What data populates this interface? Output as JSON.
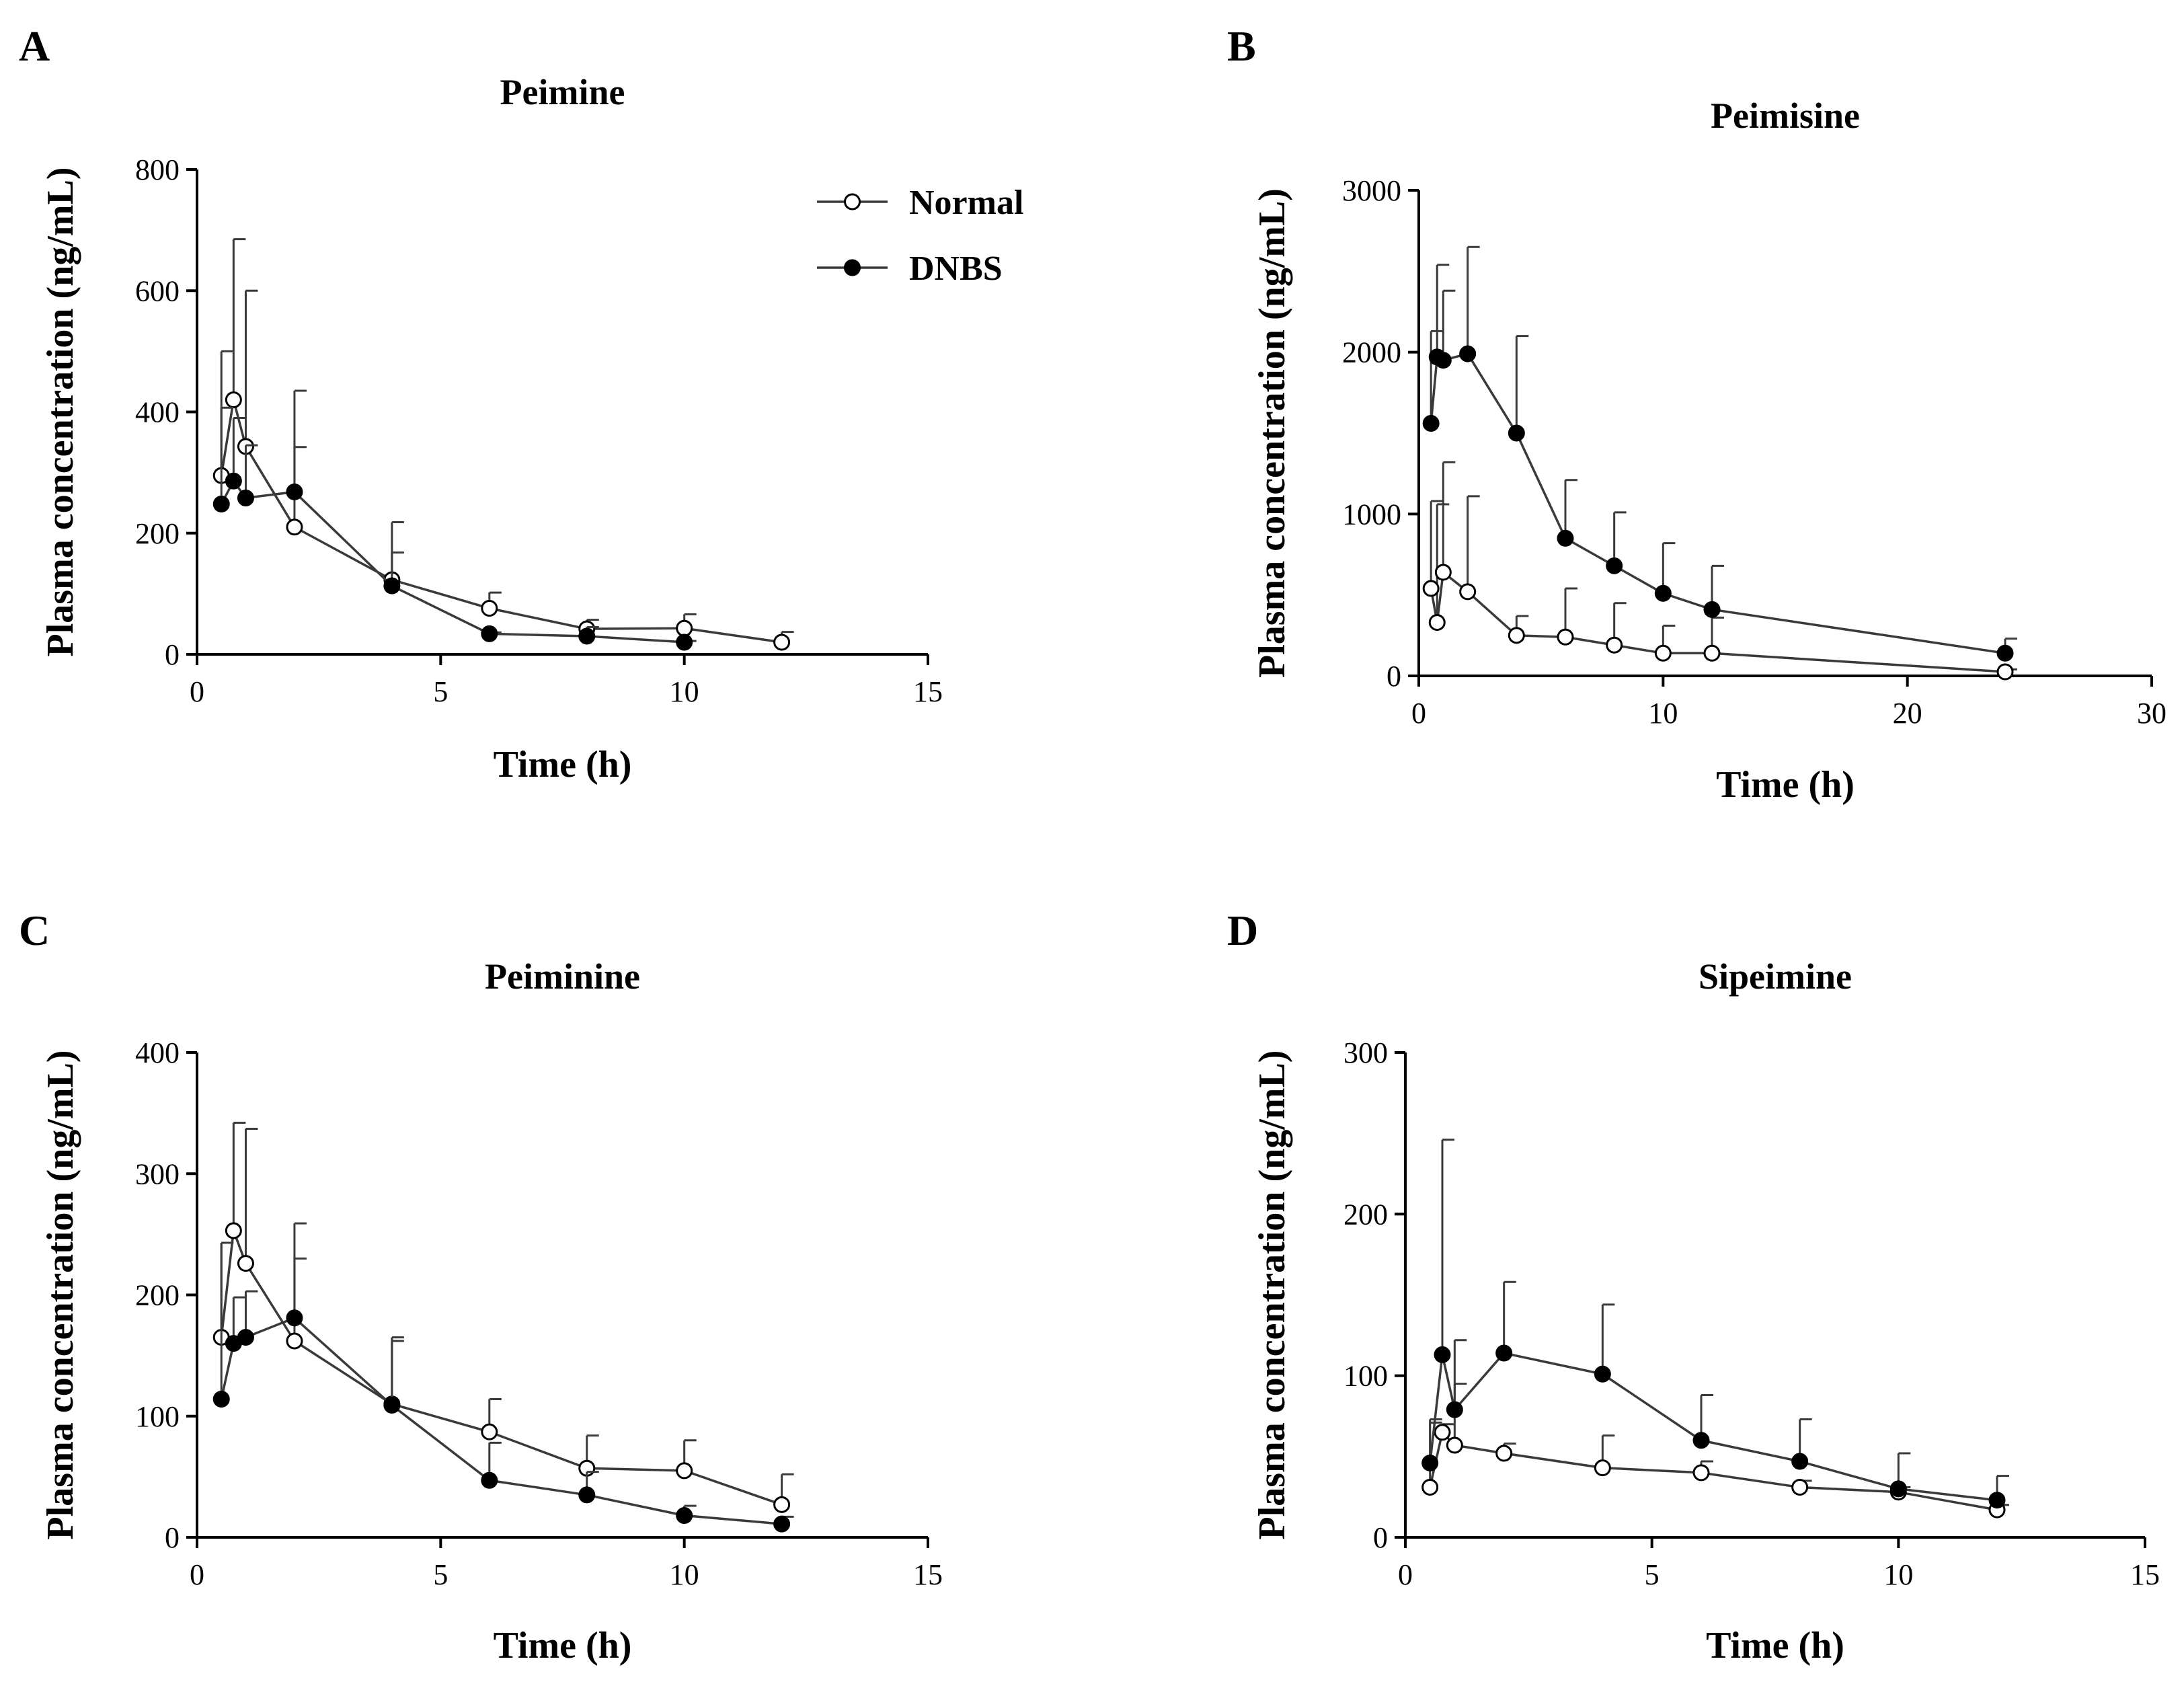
{
  "figure": {
    "legend": [
      {
        "name": "Normal",
        "marker": "open-circle"
      },
      {
        "name": "DNBS",
        "marker": "filled-circle"
      }
    ]
  },
  "colors": {
    "line": "#3a3a3a",
    "marker_edge": "#000000",
    "open_fill": "#ffffff",
    "filled_fill": "#000000"
  },
  "chart_data": [
    {
      "panel": "A",
      "type": "line",
      "title": "Peimine",
      "xlabel": "Time (h)",
      "ylabel": "Plasma concentration (ng/mL)",
      "xlim": [
        0,
        15
      ],
      "ylim": [
        0,
        800
      ],
      "xticks": [
        0,
        5,
        10,
        15
      ],
      "yticks": [
        0,
        200,
        400,
        600,
        800
      ],
      "legend_position": "top-right",
      "series": [
        {
          "name": "Normal",
          "marker": "open-circle",
          "x": [
            0.5,
            0.75,
            1,
            2,
            4,
            6,
            8,
            10,
            12
          ],
          "y": [
            295,
            420,
            343,
            210,
            123,
            76,
            42,
            43,
            20
          ],
          "error_upper": [
            500,
            685,
            600,
            342,
            218,
            102,
            57,
            66,
            37
          ]
        },
        {
          "name": "DNBS",
          "marker": "filled-circle",
          "x": [
            0.5,
            0.75,
            1,
            2,
            4,
            6,
            8,
            10
          ],
          "y": [
            248,
            286,
            258,
            268,
            113,
            34,
            30,
            20
          ],
          "error_upper": [
            407,
            390,
            345,
            435,
            168,
            36,
            45,
            22
          ]
        }
      ]
    },
    {
      "panel": "B",
      "type": "line",
      "title": "Peimisine",
      "xlabel": "Time (h)",
      "ylabel": "Plasma concentration (ng/mL)",
      "xlim": [
        0,
        30
      ],
      "ylim": [
        0,
        3000
      ],
      "xticks": [
        0,
        10,
        20,
        30
      ],
      "yticks": [
        0,
        1000,
        2000,
        3000
      ],
      "series": [
        {
          "name": "Normal",
          "marker": "open-circle",
          "x": [
            0.5,
            0.75,
            1,
            2,
            4,
            6,
            8,
            10,
            12,
            24
          ],
          "y": [
            540,
            330,
            640,
            520,
            250,
            240,
            190,
            140,
            140,
            25
          ],
          "error_upper": [
            1080,
            1060,
            1320,
            1110,
            370,
            540,
            450,
            310,
            360,
            40
          ]
        },
        {
          "name": "DNBS",
          "marker": "filled-circle",
          "x": [
            0.5,
            0.75,
            1,
            2,
            4,
            6,
            8,
            10,
            12,
            24
          ],
          "y": [
            1560,
            1970,
            1950,
            1990,
            1500,
            850,
            680,
            510,
            410,
            140
          ],
          "error_upper": [
            2130,
            2540,
            2380,
            2650,
            2100,
            1210,
            1010,
            820,
            680,
            230
          ]
        }
      ]
    },
    {
      "panel": "C",
      "type": "line",
      "title": "Peiminine",
      "xlabel": "Time (h)",
      "ylabel": "Plasma concentration (ng/mL)",
      "xlim": [
        0,
        15
      ],
      "ylim": [
        0,
        400
      ],
      "xticks": [
        0,
        5,
        10,
        15
      ],
      "yticks": [
        0,
        100,
        200,
        300,
        400
      ],
      "series": [
        {
          "name": "Normal",
          "marker": "open-circle",
          "x": [
            0.5,
            0.75,
            1,
            2,
            4,
            6,
            8,
            10,
            12
          ],
          "y": [
            165,
            253,
            226,
            162,
            110,
            87,
            57,
            55,
            27
          ],
          "error_upper": [
            243,
            342,
            337,
            230,
            165,
            114,
            84,
            80,
            52
          ]
        },
        {
          "name": "DNBS",
          "marker": "filled-circle",
          "x": [
            0.5,
            0.75,
            1,
            2,
            4,
            6,
            8,
            10,
            12
          ],
          "y": [
            114,
            160,
            165,
            181,
            109,
            47,
            35,
            18,
            11
          ],
          "error_upper": [
            243,
            198,
            203,
            259,
            162,
            78,
            54,
            26,
            17
          ]
        }
      ]
    },
    {
      "panel": "D",
      "type": "line",
      "title": "Sipeimine",
      "xlabel": "Time (h)",
      "ylabel": "Plasma concentration (ng/mL)",
      "xlim": [
        0,
        15
      ],
      "ylim": [
        0,
        300
      ],
      "xticks": [
        0,
        5,
        10,
        15
      ],
      "yticks": [
        0,
        100,
        200,
        300
      ],
      "series": [
        {
          "name": "Normal",
          "marker": "open-circle",
          "x": [
            0.5,
            0.75,
            1,
            2,
            4,
            6,
            8,
            10,
            12
          ],
          "y": [
            31,
            65,
            57,
            52,
            43,
            40,
            31,
            28,
            17
          ],
          "error_upper": [
            71,
            70,
            95,
            58,
            63,
            47,
            35,
            31,
            20
          ]
        },
        {
          "name": "DNBS",
          "marker": "filled-circle",
          "x": [
            0.5,
            0.75,
            1,
            2,
            4,
            6,
            8,
            10,
            12
          ],
          "y": [
            46,
            113,
            79,
            114,
            101,
            60,
            47,
            30,
            23
          ],
          "error_upper": [
            73,
            246,
            122,
            158,
            144,
            88,
            73,
            52,
            38
          ]
        }
      ]
    }
  ]
}
